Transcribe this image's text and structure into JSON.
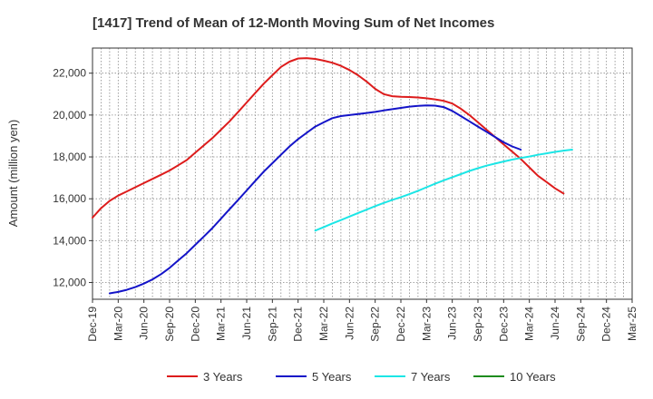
{
  "chart_data": {
    "type": "line",
    "title": "[1417]  Trend of Mean of 12-Month Moving Sum of Net Incomes",
    "xlabel": "",
    "ylabel": "Amount (million yen)",
    "ylim": [
      11200,
      23200
    ],
    "yticks": [
      12000,
      14000,
      16000,
      18000,
      20000,
      22000
    ],
    "ytick_labels": [
      "12,000",
      "14,000",
      "16,000",
      "18,000",
      "20,000",
      "22,000"
    ],
    "xlim": [
      "2019-12",
      "2025-03"
    ],
    "xtick_labels": [
      "Dec-19",
      "Mar-20",
      "Jun-20",
      "Sep-20",
      "Dec-20",
      "Mar-21",
      "Jun-21",
      "Sep-21",
      "Dec-21",
      "Mar-22",
      "Jun-22",
      "Sep-22",
      "Dec-22",
      "Mar-23",
      "Jun-23",
      "Sep-23",
      "Dec-23",
      "Mar-24",
      "Jun-24",
      "Sep-24",
      "Dec-24",
      "Mar-25"
    ],
    "grid": true,
    "legend_position": "bottom",
    "series": [
      {
        "name": "3 Years",
        "color": "#dd1c1c",
        "points": [
          [
            "2019-12",
            15100
          ],
          [
            "2020-01",
            15550
          ],
          [
            "2020-02",
            15900
          ],
          [
            "2020-03",
            16150
          ],
          [
            "2020-04",
            16350
          ],
          [
            "2020-05",
            16550
          ],
          [
            "2020-06",
            16750
          ],
          [
            "2020-07",
            16950
          ],
          [
            "2020-08",
            17150
          ],
          [
            "2020-09",
            17350
          ],
          [
            "2020-10",
            17600
          ],
          [
            "2020-11",
            17850
          ],
          [
            "2020-12",
            18200
          ],
          [
            "2021-01",
            18550
          ],
          [
            "2021-02",
            18900
          ],
          [
            "2021-03",
            19300
          ],
          [
            "2021-04",
            19700
          ],
          [
            "2021-05",
            20150
          ],
          [
            "2021-06",
            20600
          ],
          [
            "2021-07",
            21050
          ],
          [
            "2021-08",
            21500
          ],
          [
            "2021-09",
            21900
          ],
          [
            "2021-10",
            22300
          ],
          [
            "2021-11",
            22550
          ],
          [
            "2021-12",
            22700
          ],
          [
            "2022-01",
            22720
          ],
          [
            "2022-02",
            22680
          ],
          [
            "2022-03",
            22600
          ],
          [
            "2022-04",
            22500
          ],
          [
            "2022-05",
            22350
          ],
          [
            "2022-06",
            22150
          ],
          [
            "2022-07",
            21900
          ],
          [
            "2022-08",
            21600
          ],
          [
            "2022-09",
            21250
          ],
          [
            "2022-10",
            21000
          ],
          [
            "2022-11",
            20900
          ],
          [
            "2022-12",
            20870
          ],
          [
            "2023-01",
            20860
          ],
          [
            "2023-02",
            20840
          ],
          [
            "2023-03",
            20800
          ],
          [
            "2023-04",
            20750
          ],
          [
            "2023-05",
            20680
          ],
          [
            "2023-06",
            20550
          ],
          [
            "2023-07",
            20300
          ],
          [
            "2023-08",
            20000
          ],
          [
            "2023-09",
            19650
          ],
          [
            "2023-10",
            19300
          ],
          [
            "2023-11",
            18950
          ],
          [
            "2023-12",
            18600
          ],
          [
            "2024-01",
            18250
          ],
          [
            "2024-02",
            17900
          ],
          [
            "2024-03",
            17500
          ],
          [
            "2024-04",
            17100
          ],
          [
            "2024-05",
            16800
          ],
          [
            "2024-06",
            16500
          ],
          [
            "2024-07",
            16250
          ]
        ]
      },
      {
        "name": "5 Years",
        "color": "#1414c8",
        "points": [
          [
            "2020-02",
            11480
          ],
          [
            "2020-03",
            11550
          ],
          [
            "2020-04",
            11650
          ],
          [
            "2020-05",
            11780
          ],
          [
            "2020-06",
            11950
          ],
          [
            "2020-07",
            12150
          ],
          [
            "2020-08",
            12400
          ],
          [
            "2020-09",
            12700
          ],
          [
            "2020-10",
            13050
          ],
          [
            "2020-11",
            13400
          ],
          [
            "2020-12",
            13800
          ],
          [
            "2021-01",
            14200
          ],
          [
            "2021-02",
            14600
          ],
          [
            "2021-03",
            15050
          ],
          [
            "2021-04",
            15500
          ],
          [
            "2021-05",
            15950
          ],
          [
            "2021-06",
            16400
          ],
          [
            "2021-07",
            16850
          ],
          [
            "2021-08",
            17300
          ],
          [
            "2021-09",
            17700
          ],
          [
            "2021-10",
            18100
          ],
          [
            "2021-11",
            18500
          ],
          [
            "2021-12",
            18850
          ],
          [
            "2022-01",
            19150
          ],
          [
            "2022-02",
            19450
          ],
          [
            "2022-03",
            19650
          ],
          [
            "2022-04",
            19850
          ],
          [
            "2022-05",
            19950
          ],
          [
            "2022-06",
            20000
          ],
          [
            "2022-07",
            20050
          ],
          [
            "2022-08",
            20100
          ],
          [
            "2022-09",
            20150
          ],
          [
            "2022-10",
            20220
          ],
          [
            "2022-11",
            20280
          ],
          [
            "2022-12",
            20340
          ],
          [
            "2023-01",
            20400
          ],
          [
            "2023-02",
            20440
          ],
          [
            "2023-03",
            20460
          ],
          [
            "2023-04",
            20450
          ],
          [
            "2023-05",
            20380
          ],
          [
            "2023-06",
            20200
          ],
          [
            "2023-07",
            19950
          ],
          [
            "2023-08",
            19700
          ],
          [
            "2023-09",
            19450
          ],
          [
            "2023-10",
            19200
          ],
          [
            "2023-11",
            18950
          ],
          [
            "2023-12",
            18700
          ],
          [
            "2024-01",
            18500
          ],
          [
            "2024-02",
            18350
          ]
        ]
      },
      {
        "name": "7 Years",
        "color": "#1ce6e6",
        "points": [
          [
            "2022-02",
            14480
          ],
          [
            "2022-03",
            14650
          ],
          [
            "2022-04",
            14820
          ],
          [
            "2022-05",
            14980
          ],
          [
            "2022-06",
            15150
          ],
          [
            "2022-07",
            15320
          ],
          [
            "2022-08",
            15480
          ],
          [
            "2022-09",
            15650
          ],
          [
            "2022-10",
            15800
          ],
          [
            "2022-11",
            15950
          ],
          [
            "2022-12",
            16080
          ],
          [
            "2023-01",
            16220
          ],
          [
            "2023-02",
            16380
          ],
          [
            "2023-03",
            16550
          ],
          [
            "2023-04",
            16720
          ],
          [
            "2023-05",
            16880
          ],
          [
            "2023-06",
            17030
          ],
          [
            "2023-07",
            17180
          ],
          [
            "2023-08",
            17330
          ],
          [
            "2023-09",
            17460
          ],
          [
            "2023-10",
            17580
          ],
          [
            "2023-11",
            17680
          ],
          [
            "2023-12",
            17780
          ],
          [
            "2024-01",
            17870
          ],
          [
            "2024-02",
            17950
          ],
          [
            "2024-03",
            18020
          ],
          [
            "2024-04",
            18100
          ],
          [
            "2024-05",
            18170
          ],
          [
            "2024-06",
            18240
          ],
          [
            "2024-07",
            18300
          ],
          [
            "2024-08",
            18350
          ]
        ]
      },
      {
        "name": "10 Years",
        "color": "#1e8c1e",
        "points": []
      }
    ]
  }
}
